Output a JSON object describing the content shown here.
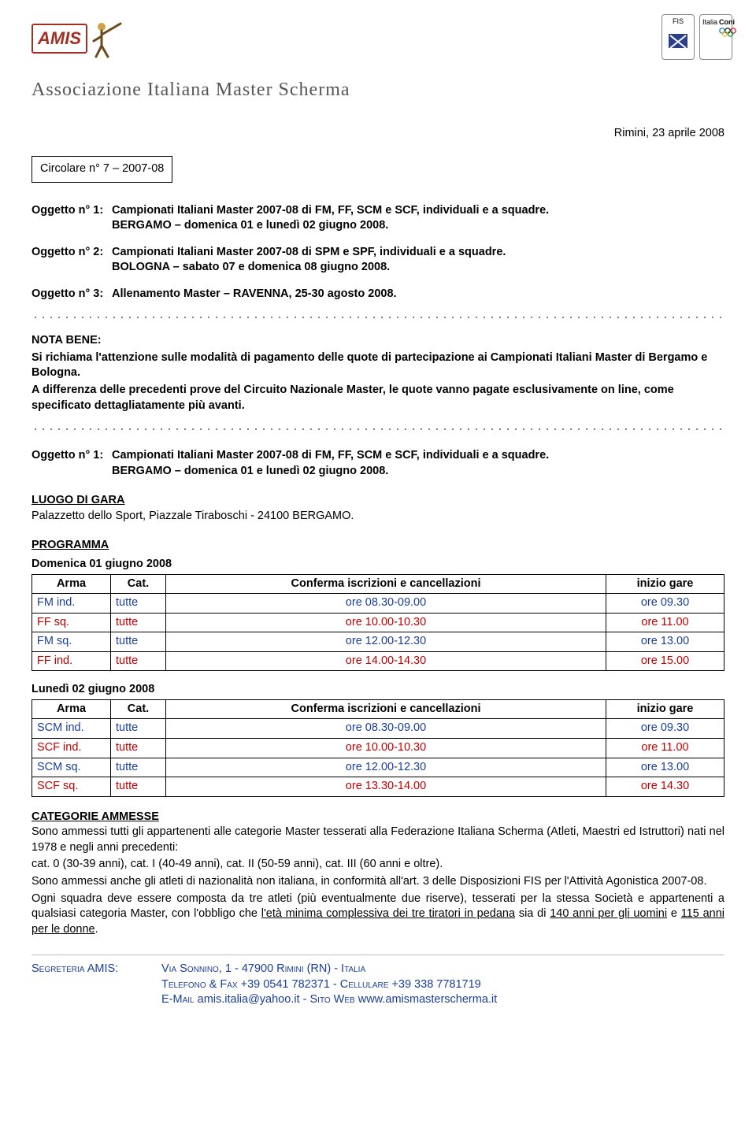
{
  "colors": {
    "blue": "#1a3e9c",
    "red": "#c00000",
    "amis_red": "#a22f24",
    "assoc_grey": "#555555"
  },
  "header": {
    "amis_text": "AMIS",
    "fis_label": "FIS",
    "italia_label": "Italia",
    "coni_label": "Coni",
    "association_title": "Associazione Italiana Master Scherma"
  },
  "date_line": "Rimini, 23 aprile 2008",
  "circolare": "Circolare n° 7 – 2007-08",
  "oggetti_top": [
    {
      "label": "Oggetto n° 1:",
      "line1": "Campionati Italiani Master 2007-08 di FM, FF, SCM e SCF, individuali e a squadre.",
      "line2": "BERGAMO – domenica 01 e lunedì 02 giugno 2008."
    },
    {
      "label": "Oggetto n° 2:",
      "line1": "Campionati Italiani Master 2007-08 di SPM e SPF, individuali e a squadre.",
      "line2": "BOLOGNA – sabato 07 e domenica 08 giugno 2008."
    },
    {
      "label": "Oggetto n° 3:",
      "line1": "Allenamento Master – RAVENNA, 25-30 agosto 2008.",
      "line2": ""
    }
  ],
  "nota_bene": {
    "head": "NOTA BENE:",
    "p1": "Si richiama l'attenzione sulle modalità di pagamento delle quote di partecipazione ai Campionati Italiani Master di Bergamo e Bologna.",
    "p2": "A differenza delle precedenti prove del Circuito Nazionale  Master, le quote vanno pagate esclusivamente on line, come specificato dettagliatamente più avanti."
  },
  "oggetto_repeat": {
    "label": "Oggetto n° 1:",
    "line1": "Campionati Italiani Master 2007-08 di FM, FF, SCM e SCF, individuali e a squadre.",
    "line2": "BERGAMO – domenica 01 e lunedì 02 giugno 2008."
  },
  "luogo": {
    "title": "LUOGO DI GARA",
    "text": "Palazzetto dello Sport, Piazzale Tiraboschi - 24100 BERGAMO."
  },
  "programma": {
    "title": "PROGRAMMA",
    "table_headers": {
      "arma": "Arma",
      "cat": "Cat.",
      "conf": "Conferma iscrizioni e cancellazioni",
      "inizio": "inizio gare"
    },
    "day1": {
      "title": "Domenica 01 giugno 2008",
      "rows": [
        {
          "color": "blue",
          "arma": "FM ind.",
          "cat": "tutte",
          "conf": "ore 08.30-09.00",
          "inizio": "ore 09.30"
        },
        {
          "color": "red",
          "arma": "FF sq.",
          "cat": "tutte",
          "conf": "ore 10.00-10.30",
          "inizio": "ore 11.00"
        },
        {
          "color": "blue",
          "arma": "FM sq.",
          "cat": "tutte",
          "conf": "ore 12.00-12.30",
          "inizio": "ore 13.00"
        },
        {
          "color": "red",
          "arma": "FF ind.",
          "cat": "tutte",
          "conf": "ore 14.00-14.30",
          "inizio": "ore 15.00"
        }
      ]
    },
    "day2": {
      "title": "Lunedì 02 giugno 2008",
      "rows": [
        {
          "color": "blue",
          "arma": "SCM ind.",
          "cat": "tutte",
          "conf": "ore 08.30-09.00",
          "inizio": "ore 09.30"
        },
        {
          "color": "red",
          "arma": "SCF ind.",
          "cat": "tutte",
          "conf": "ore 10.00-10.30",
          "inizio": "ore 11.00"
        },
        {
          "color": "blue",
          "arma": "SCM sq.",
          "cat": "tutte",
          "conf": "ore 12.00-12.30",
          "inizio": "ore 13.00"
        },
        {
          "color": "red",
          "arma": "SCF sq.",
          "cat": "tutte",
          "conf": "ore 13.30-14.00",
          "inizio": "ore 14.30"
        }
      ]
    }
  },
  "categorie": {
    "title": "CATEGORIE AMMESSE",
    "p1": "Sono ammessi tutti gli appartenenti alle categorie Master tesserati alla Federazione Italiana Scherma (Atleti, Maestri ed Istruttori) nati nel 1978 e negli anni precedenti:",
    "p2": "cat. 0 (30-39 anni), cat. I (40-49 anni), cat. II (50-59 anni), cat. III (60 anni e oltre).",
    "p3": "Sono ammessi anche gli atleti di nazionalità non italiana, in conformità all'art. 3 delle Disposizioni FIS per l'Attività Agonistica 2007-08.",
    "p4a": "Ogni squadra deve essere composta da tre atleti (più eventualmente due riserve), tesserati per la stessa Società e appartenenti a qualsiasi categoria Master, con l'obbligo che ",
    "p4u1": "l'età minima complessiva dei tre tiratori in pedana",
    "p4b": " sia di ",
    "p4u2": "140 anni per gli uomini",
    "p4c": " e ",
    "p4u3": "115 anni per le donne",
    "p4d": "."
  },
  "footer": {
    "label": "Segreteria AMIS:",
    "l1": "Via Sonnino, 1 - 47900 Rimini (RN) - Italia",
    "l2a": "Telefono & Fax ",
    "l2b": "+39 0541 782371 - ",
    "l2c": "Cellulare ",
    "l2d": "+39 338 7781719",
    "l3a": "E-Mail ",
    "l3_email": "amis.italia@yahoo.it",
    "l3b": " - Sito Web ",
    "l3_site": "www.amismasterscherma.it"
  }
}
